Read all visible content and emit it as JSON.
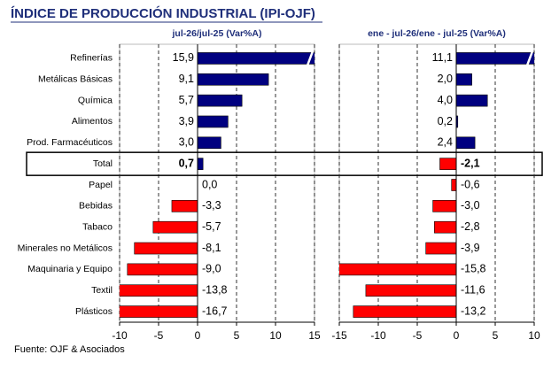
{
  "title": "ÍNDICE DE PRODUCCIÓN INDUSTRIAL (IPI-OJF)",
  "source": "Fuente: OJF & Asociados",
  "highlight_category": "Total",
  "chart_data": [
    {
      "type": "hbar",
      "subtitle": "jul-26/jul-25  (Var%A)",
      "categories": [
        "Refinerías",
        "Metálicas Básicas",
        "Química",
        "Alimentos",
        "Prod. Farmacéuticos",
        "Total",
        "Papel",
        "Bebidas",
        "Tabaco",
        "Minerales no Metálicos",
        "Maquinaria y Equipo",
        "Textil",
        "Plásticos"
      ],
      "values": [
        15.9,
        9.1,
        5.7,
        3.9,
        3.0,
        0.7,
        0.0,
        -3.3,
        -5.7,
        -8.1,
        -9.0,
        -13.8,
        -16.7
      ],
      "value_labels": [
        "15,9",
        "9,1",
        "5,7",
        "3,9",
        "3,0",
        "0,7",
        "0,0",
        "-3,3",
        "-5,7",
        "-8,1",
        "-9,0",
        "-13,8",
        "-16,7"
      ],
      "positive_color": "#000080",
      "negative_color": "#ff0000",
      "xlim": [
        -10,
        15
      ],
      "xticks": [
        -10,
        -5,
        0,
        5,
        10,
        15
      ],
      "grid": true
    },
    {
      "type": "hbar",
      "subtitle": "ene - jul-26/ene - jul-25  (Var%A)",
      "values": [
        11.1,
        2.0,
        4.0,
        0.2,
        2.4,
        -2.1,
        -0.6,
        -3.0,
        -2.8,
        -3.9,
        -15.8,
        -11.6,
        -13.2
      ],
      "value_labels": [
        "11,1",
        "2,0",
        "4,0",
        "0,2",
        "2,4",
        "-2,1",
        "-0,6",
        "-3,0",
        "-2,8",
        "-3,9",
        "-15,8",
        "-11,6",
        "-13,2"
      ],
      "positive_color": "#000080",
      "negative_color": "#ff0000",
      "xlim": [
        -15,
        10
      ],
      "xticks": [
        -15,
        -10,
        -5,
        0,
        5,
        10
      ],
      "grid": true
    }
  ]
}
